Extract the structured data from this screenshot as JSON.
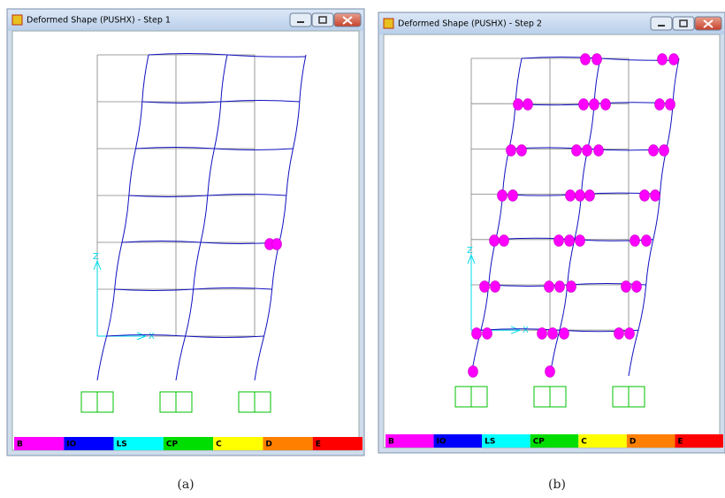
{
  "windows": [
    {
      "title": "Deformed Shape (PUSHX) - Step 1",
      "axis_z": "Z",
      "axis_x": "X",
      "legend": [
        {
          "label": "B",
          "color": "#ff00ff"
        },
        {
          "label": "IO",
          "color": "#0000ff"
        },
        {
          "label": "LS",
          "color": "#00ffff"
        },
        {
          "label": "CP",
          "color": "#00dd00"
        },
        {
          "label": "C",
          "color": "#ffff00"
        },
        {
          "label": "D",
          "color": "#ff8000"
        },
        {
          "label": "E",
          "color": "#ff0000"
        }
      ],
      "caption": "(a)"
    },
    {
      "title": "Deformed Shape (PUSHX) - Step 2",
      "axis_z": "Z",
      "axis_x": "X",
      "legend": [
        {
          "label": "B",
          "color": "#ff00ff"
        },
        {
          "label": "IO",
          "color": "#0000ff"
        },
        {
          "label": "LS",
          "color": "#00ffff"
        },
        {
          "label": "CP",
          "color": "#00dd00"
        },
        {
          "label": "C",
          "color": "#ffff00"
        },
        {
          "label": "D",
          "color": "#ff8000"
        },
        {
          "label": "E",
          "color": "#ff0000"
        }
      ],
      "caption": "(b)"
    }
  ]
}
